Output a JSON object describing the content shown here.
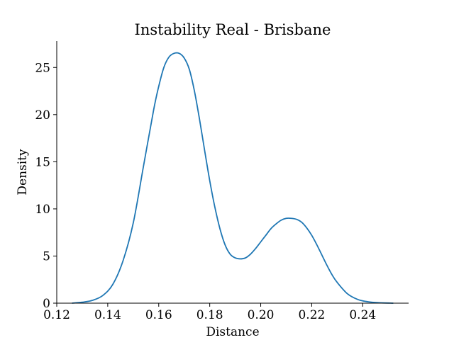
{
  "chart_data": {
    "type": "line",
    "title": "Instability Real - Brisbane",
    "xlabel": "Distance",
    "ylabel": "Density",
    "xlim": [
      0.12,
      0.258
    ],
    "ylim": [
      0,
      27.8
    ],
    "xticks": [
      0.12,
      0.14,
      0.16,
      0.18,
      0.2,
      0.22,
      0.24
    ],
    "xtick_labels": [
      "0.12",
      "0.14",
      "0.16",
      "0.18",
      "0.20",
      "0.22",
      "0.24"
    ],
    "yticks": [
      0,
      5,
      10,
      15,
      20,
      25
    ],
    "ytick_labels": [
      "0",
      "5",
      "10",
      "15",
      "20",
      "25"
    ],
    "grid": false,
    "series_color": "#1f77b4",
    "series": [
      {
        "x": [
          0.126,
          0.13,
          0.134,
          0.138,
          0.142,
          0.146,
          0.15,
          0.154,
          0.158,
          0.16,
          0.162,
          0.164,
          0.166,
          0.168,
          0.17,
          0.172,
          0.174,
          0.176,
          0.178,
          0.18,
          0.182,
          0.184,
          0.186,
          0.188,
          0.19,
          0.192,
          0.194,
          0.196,
          0.198,
          0.2,
          0.202,
          0.204,
          0.206,
          0.208,
          0.21,
          0.212,
          0.214,
          0.216,
          0.218,
          0.22,
          0.222,
          0.224,
          0.226,
          0.228,
          0.23,
          0.234,
          0.238,
          0.242,
          0.246,
          0.252
        ],
        "y": [
          0.0,
          0.1,
          0.3,
          0.8,
          2.0,
          4.5,
          8.5,
          14.5,
          20.5,
          23.0,
          25.0,
          26.1,
          26.5,
          26.5,
          26.0,
          24.8,
          22.5,
          19.5,
          16.2,
          13.0,
          10.2,
          7.9,
          6.2,
          5.2,
          4.8,
          4.7,
          4.8,
          5.2,
          5.8,
          6.5,
          7.2,
          7.9,
          8.4,
          8.8,
          9.0,
          9.0,
          8.9,
          8.6,
          8.0,
          7.2,
          6.2,
          5.1,
          4.0,
          3.0,
          2.2,
          1.0,
          0.4,
          0.15,
          0.05,
          0.0
        ]
      }
    ]
  }
}
